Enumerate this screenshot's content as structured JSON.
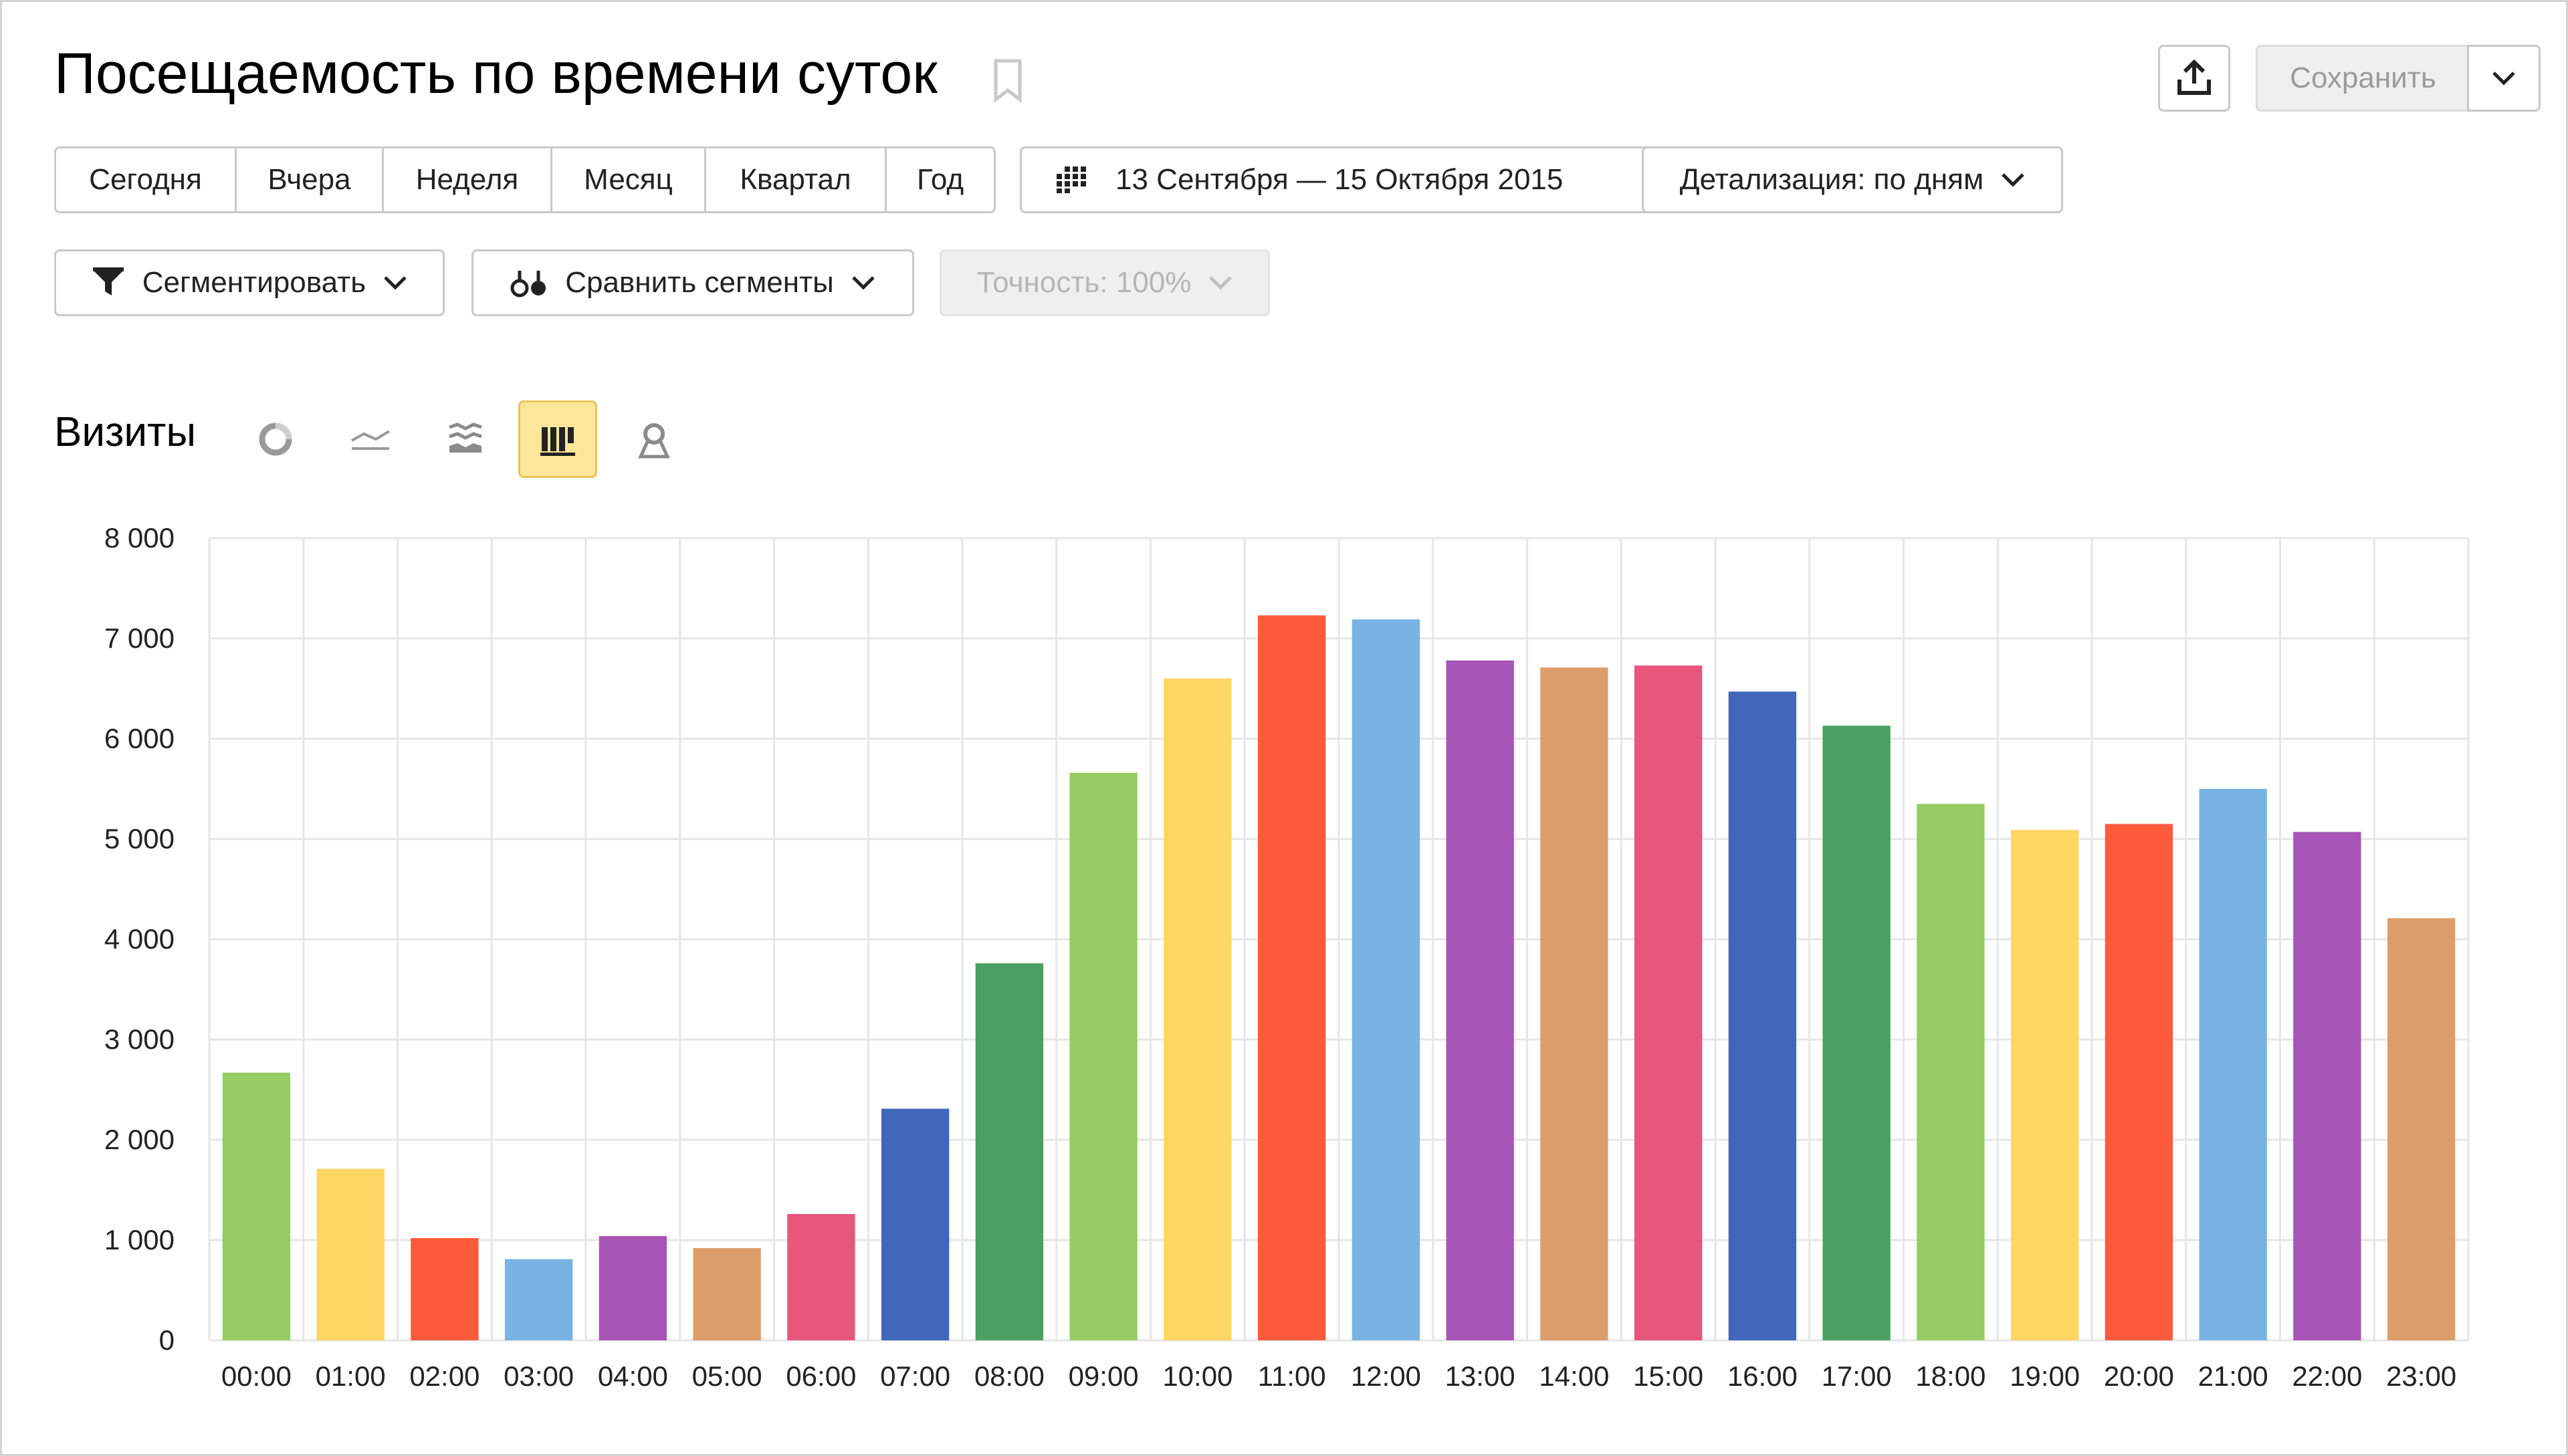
{
  "header": {
    "title": "Посещаемость по времени суток",
    "save_label": "Сохранить"
  },
  "toolbar": {
    "periods": [
      "Сегодня",
      "Вчера",
      "Неделя",
      "Месяц",
      "Квартал",
      "Год"
    ],
    "date_range": "13 Сентября — 15 Октября 2015",
    "detail_label": "Детализация: по дням",
    "segment_label": "Сегментировать",
    "compare_label": "Сравнить сегменты",
    "accuracy_label": "Точность: 100%"
  },
  "chart_section": {
    "metric_label": "Визиты",
    "chart_types": [
      "pie-chart-icon",
      "line-chart-icon",
      "area-chart-icon",
      "bar-chart-icon",
      "map-icon"
    ],
    "active_chart_type": "bar-chart-icon"
  },
  "chart_data": {
    "type": "bar",
    "title": "",
    "xlabel": "",
    "ylabel": "",
    "ylim": [
      0,
      8000
    ],
    "yticks": [
      "8 000",
      "7 000",
      "6 000",
      "5 000",
      "4 000",
      "3 000",
      "2 000",
      "1 000",
      "0"
    ],
    "grid": true,
    "categories": [
      "00:00",
      "01:00",
      "02:00",
      "03:00",
      "04:00",
      "05:00",
      "06:00",
      "07:00",
      "08:00",
      "09:00",
      "10:00",
      "11:00",
      "12:00",
      "13:00",
      "14:00",
      "15:00",
      "16:00",
      "17:00",
      "18:00",
      "19:00",
      "20:00",
      "21:00",
      "22:00",
      "23:00"
    ],
    "values": [
      2670,
      1710,
      1020,
      810,
      1040,
      920,
      1260,
      2310,
      3760,
      5660,
      6600,
      7230,
      7190,
      6780,
      6710,
      6730,
      6470,
      6130,
      5350,
      5090,
      5150,
      5500,
      5070,
      4210
    ],
    "colors": [
      "#97cb63",
      "#fed661",
      "#fe5a3c",
      "#78b3e4",
      "#a755b6",
      "#dd9d6a",
      "#e8557d",
      "#4167bb",
      "#49a062"
    ]
  }
}
